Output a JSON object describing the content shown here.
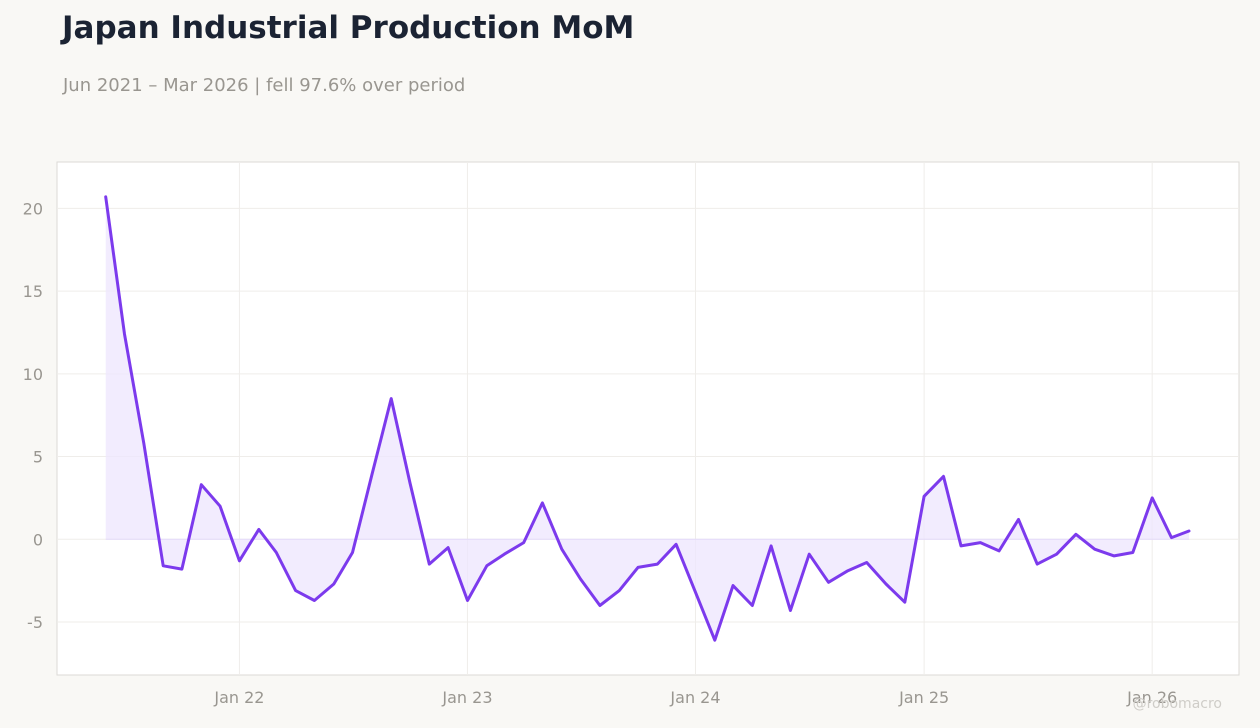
{
  "header": {
    "title": "Japan Industrial Production MoM",
    "subtitle": "Jun 2021 – Mar 2026 | fell 97.6% over period"
  },
  "watermark": "@robomacro",
  "colors": {
    "line": "#7c3aed",
    "fill": "#ede5fd",
    "grid": "#efedea",
    "frame": "#dcdad6",
    "tick_text": "#999690"
  },
  "chart_data": {
    "type": "area",
    "title": "Japan Industrial Production MoM",
    "subtitle": "Jun 2021 – Mar 2026 | fell 97.6% over period",
    "xlabel": "",
    "ylabel": "",
    "grid": true,
    "xlim": [
      "2021-03-15",
      "2026-05-20"
    ],
    "ylim": [
      -8.2,
      22.8
    ],
    "y_ticks": [
      -5,
      0,
      5,
      10,
      15,
      20
    ],
    "x_ticks": [
      {
        "date": "2022-01-01",
        "label": "Jan 22"
      },
      {
        "date": "2023-01-01",
        "label": "Jan 23"
      },
      {
        "date": "2024-01-01",
        "label": "Jan 24"
      },
      {
        "date": "2025-01-01",
        "label": "Jan 25"
      },
      {
        "date": "2026-01-01",
        "label": "Jan 26"
      }
    ],
    "series": [
      {
        "x": [
          "2021-06",
          "2021-07",
          "2021-08",
          "2021-09",
          "2021-10",
          "2021-11",
          "2021-12",
          "2022-01",
          "2022-02",
          "2022-03",
          "2022-04",
          "2022-05",
          "2022-06",
          "2022-07",
          "2022-08",
          "2022-09",
          "2022-10",
          "2022-11",
          "2022-12",
          "2023-01",
          "2023-02",
          "2023-03",
          "2023-04",
          "2023-05",
          "2023-06",
          "2023-07",
          "2023-08",
          "2023-09",
          "2023-10",
          "2023-11",
          "2023-12",
          "2024-01",
          "2024-02",
          "2024-03",
          "2024-04",
          "2024-05",
          "2024-06",
          "2024-07",
          "2024-08",
          "2024-09",
          "2024-10",
          "2024-11",
          "2024-12",
          "2025-01",
          "2025-02",
          "2025-03",
          "2025-04",
          "2025-05",
          "2025-06",
          "2025-07",
          "2025-08",
          "2025-09",
          "2025-10",
          "2025-11",
          "2025-12",
          "2026-01",
          "2026-02",
          "2026-03"
        ],
        "values": [
          20.7,
          12.4,
          5.8,
          -1.6,
          -1.8,
          3.3,
          2.0,
          -1.3,
          0.6,
          -0.8,
          -3.1,
          -3.7,
          -2.7,
          -0.8,
          3.9,
          8.5,
          3.4,
          -1.5,
          -0.5,
          -3.7,
          -1.6,
          -0.9,
          -0.2,
          2.2,
          -0.6,
          -2.4,
          -4.0,
          -3.1,
          -1.7,
          -1.5,
          -0.3,
          -3.2,
          -6.1,
          -2.8,
          -4.0,
          -0.4,
          -4.3,
          -0.9,
          -2.6,
          -1.9,
          -1.4,
          -2.7,
          -3.8,
          2.6,
          3.8,
          -0.4,
          -0.2,
          -0.7,
          1.2,
          -1.5,
          -0.9,
          0.3,
          -0.6,
          -1.0,
          -0.8,
          2.5,
          0.1,
          0.5
        ]
      }
    ]
  }
}
